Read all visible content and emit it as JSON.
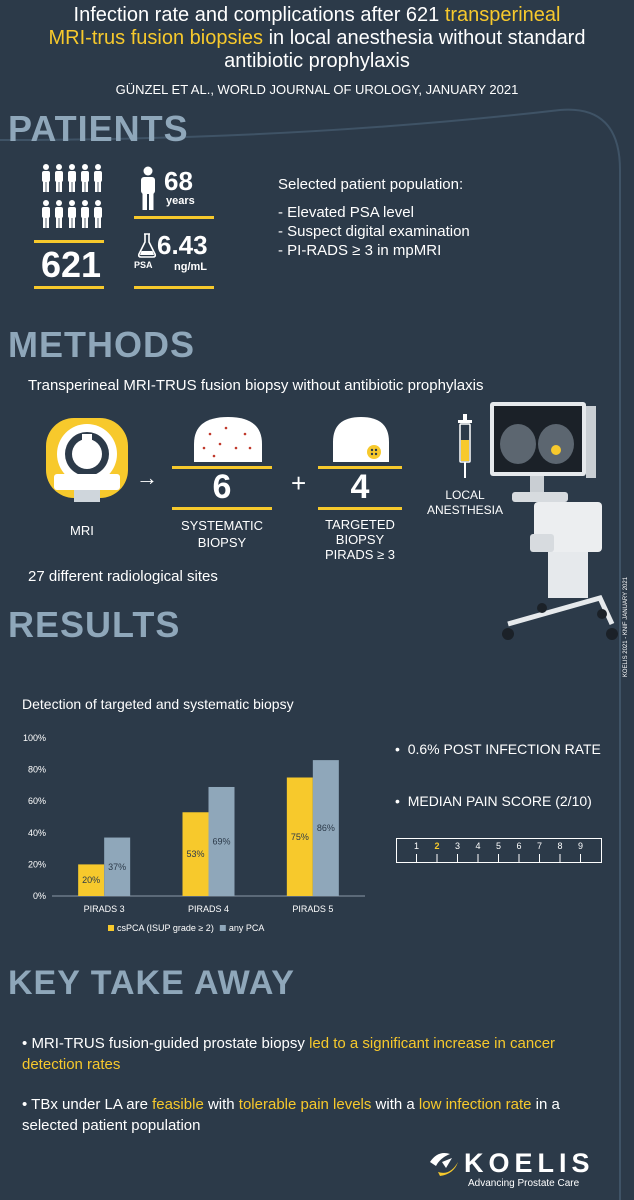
{
  "header": {
    "title_line1_a": "Infection rate and complications after 621 ",
    "title_line1_b": "transperineal",
    "title_line2_a": "MRI-trus fusion biopsies",
    "title_line2_b": " in local anesthesia without standard",
    "title_line3": "antibiotic prophylaxis",
    "citation": "GÜNZEL ET AL., WORLD JOURNAL OF UROLOGY, JANUARY 2021"
  },
  "patients": {
    "heading": "PATIENTS",
    "count": "621",
    "age_value": "68",
    "age_unit": "years",
    "psa_label": "PSA",
    "psa_value": "6.43",
    "psa_unit": "ng/mL",
    "selection_title": "Selected patient population:",
    "criteria": [
      "- Elevated PSA level",
      "- Suspect digital examination",
      "- PI-RADS ≥ 3 in mpMRI"
    ]
  },
  "methods": {
    "heading": "METHODS",
    "subtitle": "Transperineal MRI-TRUS fusion biopsy without antibiotic prophylaxis",
    "mri_label": "MRI",
    "arrow": "→",
    "plus": "+",
    "systematic_count": "6",
    "systematic_label_1": "SYSTEMATIC",
    "systematic_label_2": "BIOPSY",
    "targeted_count": "4",
    "targeted_label_1": "TARGETED",
    "targeted_label_2": "BIOPSY",
    "targeted_label_3": "PIRADS ≥ 3",
    "anesthesia_1": "LOCAL",
    "anesthesia_2": "ANESTHESIA",
    "sites": "27 different radiological sites",
    "vertical_note": "KOELIS 2021 - KNIF JANUARY 2021"
  },
  "results": {
    "heading": "RESULTS",
    "chart_title": "Detection of targeted and systematic biopsy",
    "stat1": "0.6% POST INFECTION RATE",
    "stat2": "MEDIAN PAIN SCORE (2/10)",
    "pain_scale": [
      "1",
      "2",
      "3",
      "4",
      "5",
      "6",
      "7",
      "8",
      "9"
    ],
    "pain_selected": "2",
    "bullet": "•"
  },
  "chart_data": {
    "type": "bar",
    "categories": [
      "PIRADS 3",
      "PIRADS 4",
      "PIRADS 5"
    ],
    "series": [
      {
        "name": "csPCA (ISUP grade ≥ 2)",
        "values": [
          20,
          53,
          75
        ],
        "labels": [
          "20%",
          "53%",
          "75%"
        ],
        "color": "#f7c92c"
      },
      {
        "name": "any PCA",
        "values": [
          37,
          69,
          86
        ],
        "labels": [
          "37%",
          "69%",
          "86%"
        ],
        "color": "#8fa7ba"
      }
    ],
    "ylim": [
      0,
      100
    ],
    "yticks": [
      "0%",
      "20%",
      "40%",
      "60%",
      "80%",
      "100%"
    ],
    "legend_position": "bottom",
    "grid": false
  },
  "takeaway": {
    "heading": "KEY TAKE AWAY",
    "b1_a": "MRI-TRUS fusion-guided prostate biopsy ",
    "b1_b": "led to a significant increase in cancer detection rates",
    "b2_a": "TBx under LA are ",
    "b2_b": "feasible",
    "b2_c": " with ",
    "b2_d": "tolerable pain levels",
    "b2_e": " with a ",
    "b2_f": "low infection rate",
    "b2_g": " in a selected patient population"
  },
  "brand": {
    "name": "KOELIS",
    "tagline": "Advancing Prostate Care"
  },
  "colors": {
    "background": "#2c3a49",
    "accent": "#f7c92c",
    "section": "#8fa7ba"
  }
}
